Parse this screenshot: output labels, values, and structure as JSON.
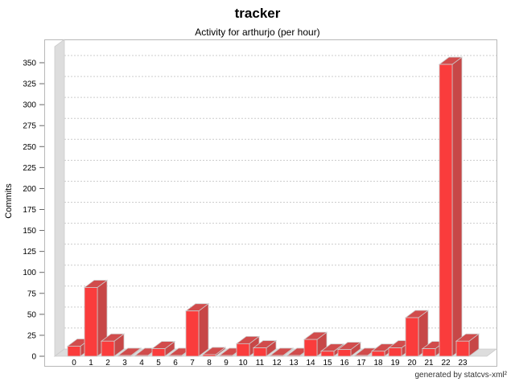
{
  "header": {
    "title": "tracker",
    "subtitle": "Activity for arthurjo (per hour)"
  },
  "footer": {
    "credit": "generated by statcvs-xml²"
  },
  "chart_data": {
    "type": "bar",
    "title": "tracker",
    "subtitle": "Activity for arthurjo (per hour)",
    "xlabel": "",
    "ylabel": "Commits",
    "categories": [
      "0",
      "1",
      "2",
      "3",
      "4",
      "5",
      "6",
      "7",
      "8",
      "9",
      "10",
      "11",
      "12",
      "13",
      "14",
      "15",
      "16",
      "17",
      "18",
      "19",
      "20",
      "21",
      "22",
      "23"
    ],
    "values": [
      12,
      82,
      18,
      1,
      1,
      9,
      1,
      54,
      2,
      1,
      15,
      10,
      1,
      1,
      20,
      6,
      8,
      1,
      6,
      10,
      46,
      9,
      348,
      18
    ],
    "ylim": [
      0,
      350
    ],
    "ytick_step": 25,
    "grid": "horizontal-dashed",
    "legend": "none",
    "style": "3d-bars",
    "colors": {
      "bar_front": "#FA3C3C",
      "bar_side": "#C74747",
      "bar_top": "#D14C4C",
      "wall": "#DDDDDD",
      "wall_edge": "#CCCCCC",
      "gridline": "#CCCCCC",
      "plot_border": "#B8B8B8",
      "tick": "#666666",
      "text": "#000000"
    }
  }
}
